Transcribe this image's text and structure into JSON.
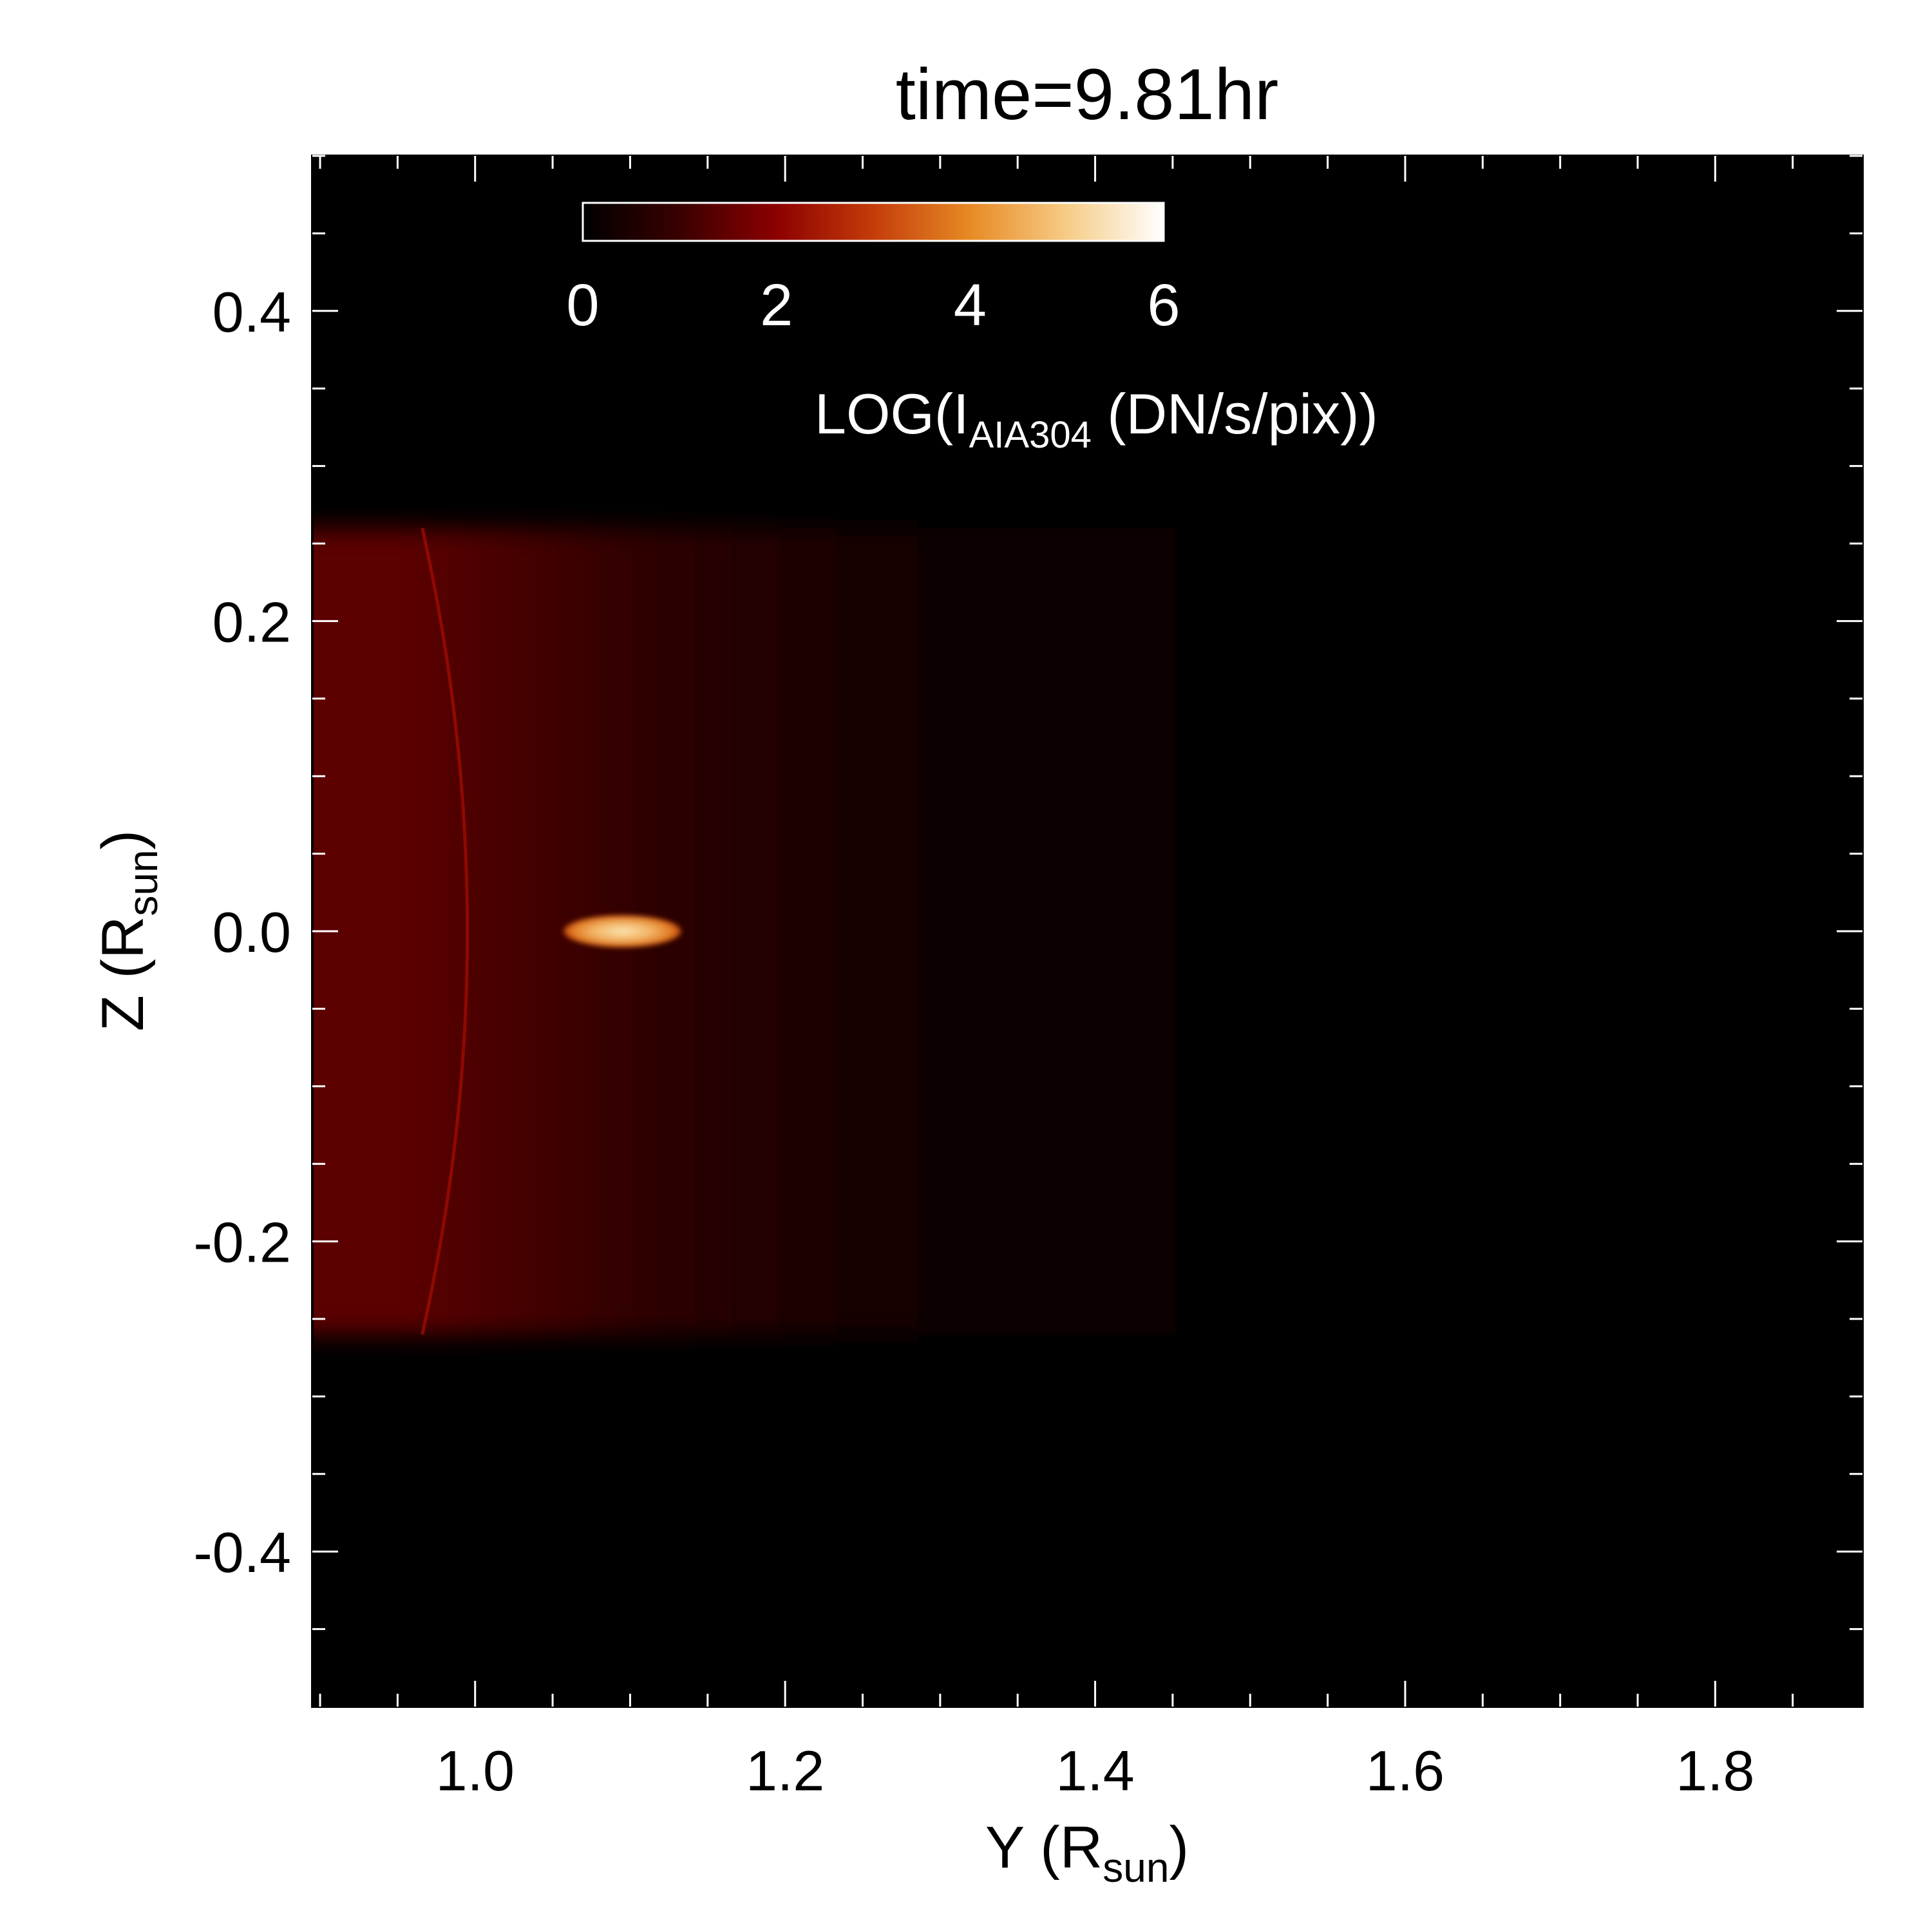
{
  "chart_data": {
    "type": "heatmap",
    "title": "time=9.81hr",
    "xlabel": {
      "main": "Y (R",
      "sub": "sun",
      "end": ")"
    },
    "ylabel": {
      "main": "Z (R",
      "sub": "sun",
      "end": ")"
    },
    "xlim": [
      0.895,
      1.895
    ],
    "ylim": [
      -0.5,
      0.5
    ],
    "x_ticks_major": [
      1.0,
      1.2,
      1.4,
      1.6,
      1.8
    ],
    "x_tick_labels": [
      "1.0",
      "1.2",
      "1.4",
      "1.6",
      "1.8"
    ],
    "x_minor_step": 0.05,
    "y_ticks_major": [
      -0.4,
      -0.2,
      0.0,
      0.2,
      0.4
    ],
    "y_tick_labels": [
      "-0.4",
      "-0.2",
      "0.0",
      "0.2",
      "0.4"
    ],
    "y_minor_step": 0.05,
    "colorbar": {
      "range": [
        0,
        6
      ],
      "ticks": [
        0,
        2,
        4,
        6
      ],
      "tick_labels": [
        "0",
        "2",
        "4",
        "6"
      ],
      "label": {
        "main": "LOG(I",
        "sub": "AIA304",
        "end": " (DN/s/pix))"
      },
      "colormap": [
        "#000000",
        "#3a0000",
        "#8c0000",
        "#c43c0a",
        "#e88a25",
        "#f6cc86",
        "#ffffff"
      ]
    },
    "features": {
      "limb_arc": {
        "y_at_z0": 0.995,
        "z_extent": [
          -0.26,
          0.26
        ],
        "color": "#8c0000"
      },
      "streamer_band": {
        "z_extent": [
          -0.26,
          0.26
        ],
        "log_intensity_peak": 2.2,
        "y_extent": [
          0.895,
          1.55
        ]
      },
      "bright_blob": {
        "y_center": 1.095,
        "z_center": 0.0,
        "y_halfwidth": 0.038,
        "z_halfwidth": 0.008,
        "log_intensity": 5.0
      }
    }
  }
}
